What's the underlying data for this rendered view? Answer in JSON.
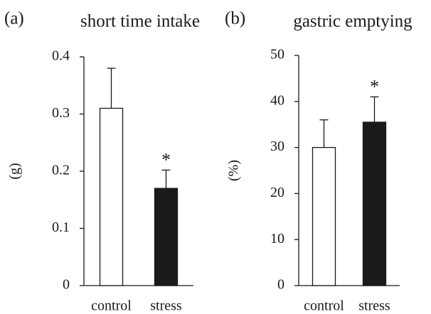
{
  "chart_data": [
    {
      "type": "bar",
      "panel_label": "(a)",
      "title": "short time intake",
      "y_label": "(g)",
      "categories": [
        "control",
        "stress"
      ],
      "values": [
        0.31,
        0.17
      ],
      "errors": [
        0.07,
        0.032
      ],
      "colors": [
        "#ffffff",
        "#1a1a1a"
      ],
      "annotation": "*",
      "ylim": [
        0,
        0.4
      ],
      "yticks": [
        0,
        0.1,
        0.2,
        0.3,
        0.4
      ],
      "grid": false
    },
    {
      "type": "bar",
      "panel_label": "(b)",
      "title": "gastric emptying",
      "y_label": "(%)",
      "categories": [
        "control",
        "stress"
      ],
      "values": [
        30,
        35.5
      ],
      "errors": [
        6,
        5.5
      ],
      "colors": [
        "#ffffff",
        "#1a1a1a"
      ],
      "annotation": "*",
      "ylim": [
        0,
        50
      ],
      "yticks": [
        0,
        10,
        20,
        30,
        40,
        50
      ],
      "grid": false
    }
  ]
}
